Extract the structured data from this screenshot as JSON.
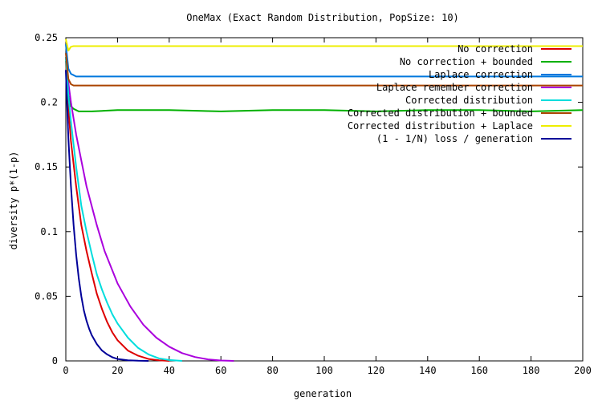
{
  "chart_data": {
    "type": "line",
    "title": "OneMax (Exact Random Distribution, PopSize: 10)",
    "xlabel": "generation",
    "ylabel": "diversity p*(1-p)",
    "xlim": [
      0,
      200
    ],
    "ylim": [
      0,
      0.25
    ],
    "grid": false,
    "legend_position": "top-right",
    "xticks": [
      {
        "value": 0,
        "label": "0"
      },
      {
        "value": 20,
        "label": "20"
      },
      {
        "value": 40,
        "label": "40"
      },
      {
        "value": 60,
        "label": "60"
      },
      {
        "value": 80,
        "label": "80"
      },
      {
        "value": 100,
        "label": "100"
      },
      {
        "value": 120,
        "label": "120"
      },
      {
        "value": 140,
        "label": "140"
      },
      {
        "value": 160,
        "label": "160"
      },
      {
        "value": 180,
        "label": "180"
      },
      {
        "value": 200,
        "label": "200"
      }
    ],
    "yticks": [
      {
        "value": 0,
        "label": "0"
      },
      {
        "value": 0.05,
        "label": "0.05"
      },
      {
        "value": 0.1,
        "label": "0.1"
      },
      {
        "value": 0.15,
        "label": "0.15"
      },
      {
        "value": 0.2,
        "label": "0.2"
      },
      {
        "value": 0.25,
        "label": "0.25"
      }
    ],
    "series": [
      {
        "name": "No correction",
        "color": "#dd0000",
        "x": [
          0,
          1,
          2,
          4,
          6,
          8,
          10,
          12,
          14,
          16,
          18,
          20,
          24,
          28,
          32,
          36,
          40
        ],
        "y": [
          0.232,
          0.195,
          0.17,
          0.135,
          0.105,
          0.085,
          0.068,
          0.052,
          0.04,
          0.03,
          0.022,
          0.016,
          0.008,
          0.004,
          0.0015,
          0.0005,
          0
        ]
      },
      {
        "name": "No correction + bounded",
        "color": "#00b000",
        "x": [
          0,
          1,
          2,
          3,
          4,
          5,
          10,
          20,
          40,
          60,
          80,
          100,
          120,
          140,
          160,
          180,
          200
        ],
        "y": [
          0.235,
          0.205,
          0.197,
          0.195,
          0.194,
          0.193,
          0.193,
          0.194,
          0.194,
          0.193,
          0.194,
          0.194,
          0.193,
          0.194,
          0.194,
          0.193,
          0.194
        ]
      },
      {
        "name": "Laplace correction",
        "color": "#0077dd",
        "x": [
          0,
          1,
          2,
          3,
          4,
          5,
          10,
          20,
          40,
          60,
          80,
          100,
          120,
          140,
          160,
          180,
          200
        ],
        "y": [
          0.245,
          0.226,
          0.222,
          0.221,
          0.22,
          0.22,
          0.22,
          0.22,
          0.22,
          0.22,
          0.22,
          0.22,
          0.22,
          0.22,
          0.22,
          0.22,
          0.22
        ]
      },
      {
        "name": "Laplace remember correction",
        "color": "#aa00dd",
        "x": [
          0,
          1,
          2,
          4,
          6,
          8,
          10,
          12,
          15,
          18,
          20,
          25,
          30,
          35,
          40,
          45,
          50,
          55,
          60,
          65
        ],
        "y": [
          0.235,
          0.215,
          0.2,
          0.175,
          0.155,
          0.135,
          0.12,
          0.105,
          0.085,
          0.07,
          0.06,
          0.042,
          0.028,
          0.018,
          0.011,
          0.006,
          0.003,
          0.0012,
          0.0003,
          0
        ]
      },
      {
        "name": "Corrected distribution",
        "color": "#00dddd",
        "x": [
          0,
          1,
          2,
          4,
          6,
          8,
          10,
          12,
          14,
          16,
          18,
          20,
          24,
          28,
          32,
          36,
          40,
          45
        ],
        "y": [
          0.235,
          0.205,
          0.185,
          0.15,
          0.12,
          0.1,
          0.083,
          0.067,
          0.055,
          0.045,
          0.036,
          0.029,
          0.018,
          0.01,
          0.005,
          0.002,
          0.0007,
          0
        ]
      },
      {
        "name": "Corrected distribution + bounded",
        "color": "#aa4400",
        "x": [
          0,
          1,
          2,
          3,
          4,
          5,
          10,
          20,
          40,
          60,
          80,
          100,
          120,
          140,
          160,
          180,
          200
        ],
        "y": [
          0.238,
          0.218,
          0.214,
          0.213,
          0.213,
          0.213,
          0.213,
          0.213,
          0.213,
          0.213,
          0.213,
          0.213,
          0.213,
          0.213,
          0.213,
          0.213,
          0.213
        ]
      },
      {
        "name": "Corrected distribution + Laplace",
        "color": "#eeee00",
        "x": [
          0,
          1,
          2,
          3,
          4,
          5,
          10,
          20,
          40,
          60,
          80,
          100,
          120,
          140,
          160,
          180,
          200
        ],
        "y": [
          0.249,
          0.24,
          0.243,
          0.2435,
          0.2435,
          0.2435,
          0.2435,
          0.2435,
          0.2435,
          0.2435,
          0.2435,
          0.2435,
          0.2435,
          0.2435,
          0.2435,
          0.2435,
          0.2435
        ]
      },
      {
        "name": "(1 - 1/N) loss / generation",
        "color": "#000099",
        "x": [
          0,
          1,
          2,
          3,
          4,
          5,
          6,
          7,
          8,
          9,
          10,
          12,
          14,
          16,
          18,
          20,
          24,
          28,
          32
        ],
        "y": [
          0.225,
          0.172,
          0.135,
          0.105,
          0.082,
          0.064,
          0.05,
          0.039,
          0.031,
          0.025,
          0.02,
          0.013,
          0.008,
          0.005,
          0.0028,
          0.0015,
          0.0005,
          0.0001,
          0
        ]
      }
    ]
  }
}
